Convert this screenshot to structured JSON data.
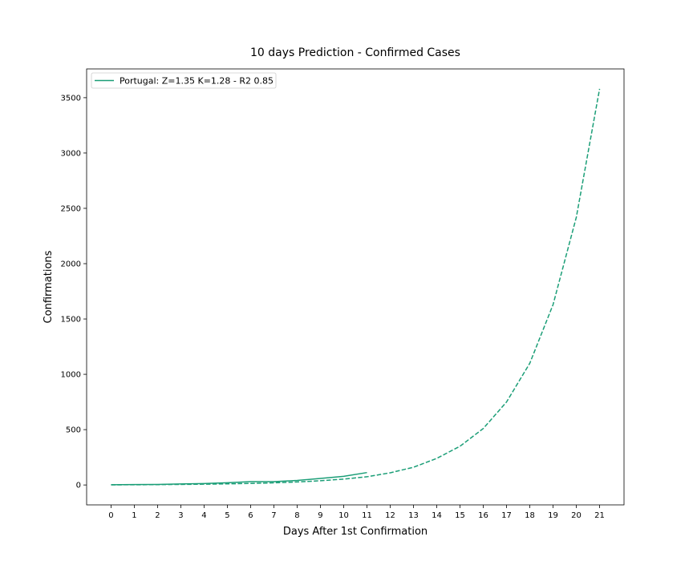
{
  "chart_data": {
    "type": "line",
    "title": "10 days Prediction - Confirmed Cases",
    "xlabel": "Days After 1st Confirmation",
    "ylabel": "Confirmations",
    "xlim": [
      -1.05,
      22.05
    ],
    "ylim": [
      -180,
      3760
    ],
    "x_ticks": [
      0,
      1,
      2,
      3,
      4,
      5,
      6,
      7,
      8,
      9,
      10,
      11,
      12,
      13,
      14,
      15,
      16,
      17,
      18,
      19,
      20,
      21
    ],
    "y_ticks": [
      0,
      500,
      1000,
      1500,
      2000,
      2500,
      3000,
      3500
    ],
    "grid": false,
    "legend_position": "top-left",
    "color": "#1b9e77",
    "series": [
      {
        "name": "Portugal: Z=1.35 K=1.28 - R2 0.85",
        "style": "solid",
        "x": [
          0,
          1,
          2,
          3,
          4,
          5,
          6,
          7,
          8,
          9,
          10,
          11
        ],
        "y": [
          2,
          4,
          5,
          9,
          13,
          20,
          30,
          30,
          41,
          59,
          78,
          112
        ]
      },
      {
        "name": "",
        "style": "dashed",
        "x": [
          0,
          1,
          2,
          3,
          4,
          5,
          6,
          7,
          8,
          9,
          10,
          11,
          12,
          13,
          14,
          15,
          16,
          17,
          18,
          19,
          20,
          21
        ],
        "y": [
          1,
          2,
          3,
          5,
          7,
          10,
          14,
          19,
          27,
          38,
          53,
          74,
          110,
          160,
          240,
          350,
          510,
          750,
          1100,
          1630,
          2420,
          3580
        ]
      }
    ]
  }
}
